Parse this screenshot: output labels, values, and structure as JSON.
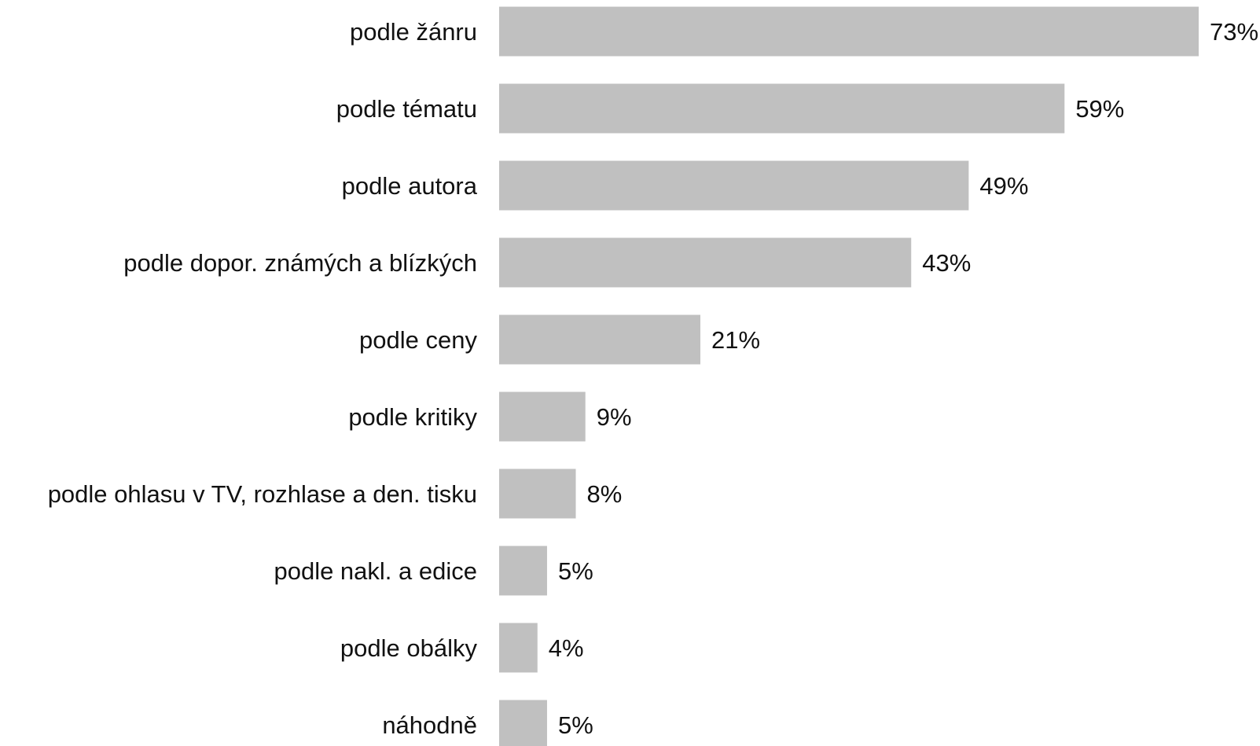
{
  "chart_data": {
    "type": "bar",
    "orientation": "horizontal",
    "categories": [
      "podle žánru",
      "podle tématu",
      "podle autora",
      "podle dopor. známých a blízkých",
      "podle ceny",
      "podle kritiky",
      "podle ohlasu v TV, rozhlase a den. tisku",
      "podle nakl. a edice",
      "podle obálky",
      "náhodně"
    ],
    "values": [
      73,
      59,
      49,
      43,
      21,
      9,
      8,
      5,
      4,
      5
    ],
    "value_labels": [
      "73%",
      "59%",
      "49%",
      "43%",
      "21%",
      "9%",
      "8%",
      "5%",
      "4%",
      "5%"
    ],
    "unit": "%",
    "xlim": [
      0,
      73
    ],
    "grid": false,
    "legend": "none",
    "bar_color": "#c0c0c0"
  }
}
